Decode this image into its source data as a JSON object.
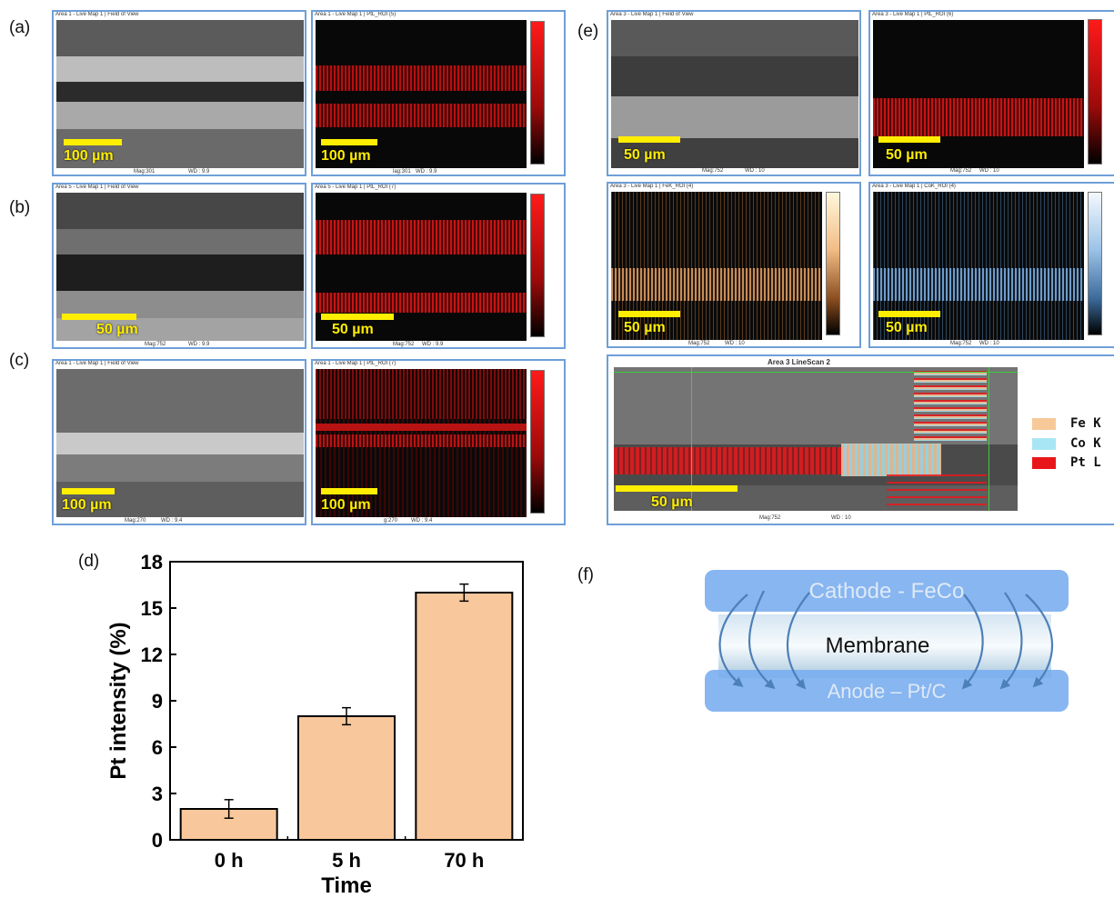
{
  "panel_labels": {
    "a": "(a)",
    "b": "(b)",
    "c": "(c)",
    "d": "(d)",
    "e": "(e)",
    "f": "(f)"
  },
  "maps": {
    "a_sem": {
      "title": "Area 1 - Live Map 1 | Field of View",
      "scale": "100 µm",
      "mag": "Mag:301",
      "wd": "WD : 9.9"
    },
    "a_pt": {
      "title": "Area 1 - Live Map 1 | PtL_ROI (5)",
      "scale": "100 µm",
      "mag": "lag:301",
      "wd": "WD : 9.9"
    },
    "b_sem": {
      "title": "Area 5 - Live Map 1 | Field of View",
      "scale": "50 µm",
      "mag": "Mag:752",
      "wd": "WD : 9.9"
    },
    "b_pt": {
      "title": "Area 5 - Live Map 1 | PtL_ROI (7)",
      "scale": "50 µm",
      "mag": "Mag:752",
      "wd": "WD : 9.9"
    },
    "c_sem": {
      "title": "Area 1 - Live Map 1 | Field of View",
      "scale": "100 µm",
      "mag": "Mag:270",
      "wd": "WD : 9.4"
    },
    "c_pt": {
      "title": "Area 1 - Live Map 1 | PtL_ROI (7)",
      "scale": "100 µm",
      "mag": "g:270",
      "wd": "WD : 9.4"
    },
    "e_sem": {
      "title": "Area 3 - Live Map 1 | Field of View",
      "scale": "50 µm",
      "mag": "Mag:752",
      "wd": "WD : 10"
    },
    "e_pt": {
      "title": "Area 3 - Live Map 1 | PtL_ROI (6)",
      "scale": "50 µm",
      "mag": "Mag:752",
      "wd": "WD : 10"
    },
    "e_fe": {
      "title": "Area 3 - Live Map 1 | FeK_ROI (4)",
      "scale": "50 µm",
      "mag": "Mag:752",
      "wd": "WD : 10"
    },
    "e_co": {
      "title": "Area 3 - Live Map 1 | CoK_ROI (4)",
      "scale": "50 µm",
      "mag": "Mag:752",
      "wd": "WD : 10"
    },
    "e_line": {
      "title": "Area 3 LineScan 2",
      "scale": "50 µm",
      "mag": "Mag:752",
      "wd": "WD : 10"
    }
  },
  "linescan_legend": [
    {
      "label": "Fe K",
      "color": "#f7c99a"
    },
    {
      "label": "Co K",
      "color": "#a9e6f5"
    },
    {
      "label": "Pt L",
      "color": "#e8161b"
    }
  ],
  "chart_data": {
    "type": "bar",
    "categories": [
      "0 h",
      "5 h",
      "70 h"
    ],
    "values": [
      2.0,
      8.0,
      16.0
    ],
    "errors": [
      0.6,
      0.55,
      0.55
    ],
    "xlabel": "Time",
    "ylabel": "Pt intensity (%)",
    "ylim": [
      0,
      18
    ],
    "yticks": [
      0,
      3,
      6,
      9,
      12,
      15,
      18
    ],
    "bar_color": "#f8c79b"
  },
  "schematic": {
    "cathode": "Cathode - FeCo",
    "membrane": "Membrane",
    "anode": "Anode – Pt/C"
  }
}
